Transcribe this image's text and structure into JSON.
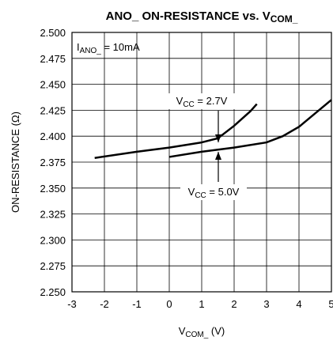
{
  "chart_data": {
    "type": "line",
    "title": {
      "main": "ANO_ ON-RESISTANCE vs. V",
      "sub": "COM_"
    },
    "xlabel": {
      "main": "V",
      "sub": "COM_",
      "rest": " (V)"
    },
    "ylabel": "ON-RESISTANCE (Ω)",
    "xlim": [
      -3,
      5
    ],
    "ylim": [
      2.25,
      2.5
    ],
    "xticks": [
      -3,
      -2,
      -1,
      0,
      1,
      2,
      3,
      4,
      5
    ],
    "yticks": [
      {
        "value": 2.25,
        "label": "2.250"
      },
      2.275,
      {
        "value": 2.3,
        "label": "2.300"
      },
      2.325,
      {
        "value": 2.35,
        "label": "2.350"
      },
      2.375,
      {
        "value": 2.4,
        "label": "2.400"
      },
      2.425,
      {
        "value": 2.45,
        "label": "2.450"
      },
      2.475,
      {
        "value": 2.5,
        "label": "2.500"
      }
    ],
    "grid": true,
    "series": [
      {
        "color": "#000000",
        "x": [
          -2.3,
          -1,
          0,
          1,
          1.5,
          2,
          2.5,
          2.7
        ],
        "values": [
          2.379,
          2.385,
          2.389,
          2.394,
          2.398,
          2.41,
          2.424,
          2.431
        ]
      },
      {
        "color": "#000000",
        "x": [
          0,
          1,
          2,
          3,
          3.5,
          4,
          4.5,
          5
        ],
        "values": [
          2.38,
          2.385,
          2.389,
          2.394,
          2.4,
          2.409,
          2.422,
          2.435
        ]
      }
    ],
    "annotations": [
      {
        "main": "I",
        "sub": "ANO_",
        "rest": " = 10mA"
      },
      {
        "main": "V",
        "sub": "CC",
        "rest": " = 2.7V"
      },
      {
        "main": "V",
        "sub": "CC",
        "rest": " = 5.0V"
      }
    ]
  }
}
